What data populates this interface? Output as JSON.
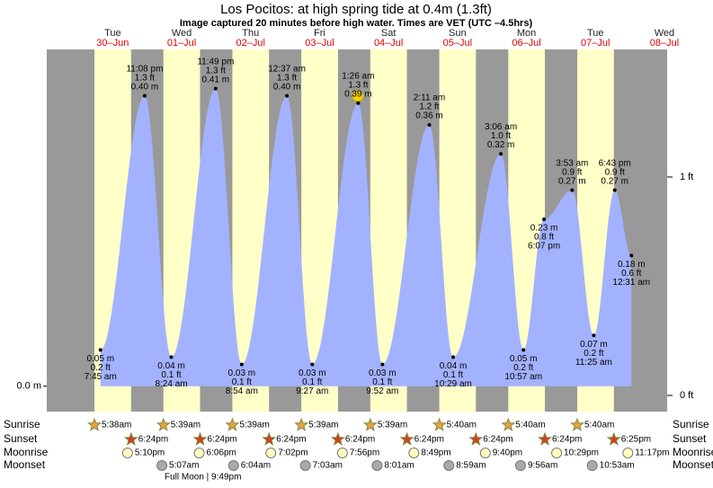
{
  "chart_data": {
    "type": "tide",
    "title": "Los Pocitos: at high  spring tide at 0.4m (1.3ft)",
    "subtitle": "Image captured 20 minutes before high water. Times are VET (UTC –4.5hrs)",
    "ylim": [
      -0.035,
      0.464
    ],
    "yticks": [
      {
        "value": 0,
        "label": "0.0 m"
      }
    ],
    "y2lim": [
      -0.074,
      1.584
    ],
    "y2ticks": [
      {
        "value": 1,
        "label": "1 ft"
      },
      {
        "value": 0,
        "label": "0 ft"
      }
    ],
    "colors": {
      "night": "#999999",
      "day": "#ffffc8",
      "water": "#a3b2ff",
      "date": "#e00000"
    },
    "row_labels": [
      "Sunrise",
      "Sunset",
      "Moonrise",
      "Moonset"
    ],
    "full_moon": "Full Moon | 9:49pm",
    "days": [
      {
        "weekday": "Tue",
        "date": "30–Jun",
        "sunrise": "5:38am",
        "sunset": "6:24pm",
        "moonrise": "5:10pm",
        "moonset": null,
        "tides": [
          {
            "time": "7:45 am",
            "height": 0.05,
            "height_label": "0.05 m",
            "feet": "0.2 ft"
          },
          {
            "time": "11:08 pm",
            "height": 0.4,
            "height_label": "0.40 m",
            "feet": "1.3 ft"
          }
        ]
      },
      {
        "weekday": "Wed",
        "date": "01–Jul",
        "sunrise": "5:39am",
        "sunset": "6:24pm",
        "moonrise": "6:06pm",
        "moonset": "5:07am",
        "tides": [
          {
            "time": "8:24 am",
            "height": 0.04,
            "height_label": "0.04 m",
            "feet": "0.1 ft"
          },
          {
            "time": "11:49 pm",
            "height": 0.41,
            "height_label": "0.41 m",
            "feet": "1.3 ft"
          }
        ]
      },
      {
        "weekday": "Thu",
        "date": "02–Jul",
        "sunrise": "5:39am",
        "sunset": "6:24pm",
        "moonrise": "7:02pm",
        "moonset": "6:04am",
        "tides": [
          {
            "time": "8:54 am",
            "height": 0.03,
            "height_label": "0.03 m",
            "feet": "0.1 ft"
          }
        ]
      },
      {
        "weekday": "Fri",
        "date": "03–Jul",
        "sunrise": "5:39am",
        "sunset": "6:24pm",
        "moonrise": "7:56pm",
        "moonset": "7:03am",
        "tides": [
          {
            "time": "12:37 am",
            "height": 0.4,
            "height_label": "0.40 m",
            "feet": "1.3 ft"
          },
          {
            "time": "9:27 am",
            "height": 0.03,
            "height_label": "0.03 m",
            "feet": "0.1 ft"
          }
        ]
      },
      {
        "weekday": "Sat",
        "date": "04–Jul",
        "sunrise": "5:39am",
        "sunset": "6:24pm",
        "moonrise": "8:49pm",
        "moonset": "8:01am",
        "tides": [
          {
            "time": "1:26 am",
            "height": 0.39,
            "height_label": "0.39 m",
            "feet": "1.3 ft"
          },
          {
            "time": "9:52 am",
            "height": 0.03,
            "height_label": "0.03 m",
            "feet": "0.1 ft"
          }
        ]
      },
      {
        "weekday": "Sun",
        "date": "05–Jul",
        "sunrise": "5:40am",
        "sunset": "6:24pm",
        "moonrise": "9:40pm",
        "moonset": "8:59am",
        "tides": [
          {
            "time": "2:11 am",
            "height": 0.36,
            "height_label": "0.36 m",
            "feet": "1.2 ft"
          },
          {
            "time": "10:29 am",
            "height": 0.04,
            "height_label": "0.04 m",
            "feet": "0.1 ft"
          }
        ]
      },
      {
        "weekday": "Mon",
        "date": "06–Jul",
        "sunrise": "5:40am",
        "sunset": "6:24pm",
        "moonrise": "10:29pm",
        "moonset": "9:56am",
        "tides": [
          {
            "time": "3:06 am",
            "height": 0.32,
            "height_label": "0.32 m",
            "feet": "1.0 ft"
          },
          {
            "time": "10:57 am",
            "height": 0.05,
            "height_label": "0.05 m",
            "feet": "0.2 ft"
          },
          {
            "time": "6:07 pm",
            "height": 0.23,
            "height_label": "0.23 m",
            "feet": "0.8 ft"
          }
        ]
      },
      {
        "weekday": "Tue",
        "date": "07–Jul",
        "sunrise": "5:40am",
        "sunset": "6:25pm",
        "moonrise": "11:17pm",
        "moonset": "10:53am",
        "tides": [
          {
            "time": "3:53 am",
            "height": 0.27,
            "height_label": "0.27 m",
            "feet": "0.9 ft"
          },
          {
            "time": "11:25 am",
            "height": 0.07,
            "height_label": "0.07 m",
            "feet": "0.2 ft"
          },
          {
            "time": "6:43 pm",
            "height": 0.27,
            "height_label": "0.27 m",
            "feet": "0.9 ft"
          }
        ]
      },
      {
        "weekday": "Wed",
        "date": "08–Jul",
        "sunrise": null,
        "sunset": null,
        "moonrise": null,
        "moonset": null,
        "tides": [
          {
            "time": "12:31 am",
            "height": 0.18,
            "height_label": "0.18 m",
            "feet": "0.6 ft"
          }
        ]
      }
    ]
  }
}
